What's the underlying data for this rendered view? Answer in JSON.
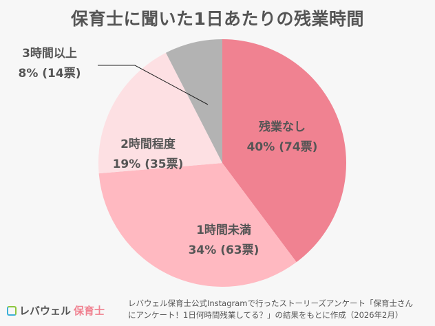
{
  "chart_data": {
    "type": "pie",
    "title": "保育士に聞いた1日あたりの残業時間",
    "start": "top",
    "direction": "clockwise",
    "slices": [
      {
        "label": "残業なし",
        "percent": 40,
        "votes": 74,
        "value_label": "40% (74票)",
        "color": "#f08291"
      },
      {
        "label": "1時間未満",
        "percent": 34,
        "votes": 63,
        "value_label": "34% (63票)",
        "color": "#ffb9c1"
      },
      {
        "label": "2時間程度",
        "percent": 19,
        "votes": 35,
        "value_label": "19% (35票)",
        "color": "#fde0e3"
      },
      {
        "label": "3時間以上",
        "percent": 8,
        "votes": 14,
        "value_label": "8% (14票)",
        "color": "#b3b3b3"
      }
    ]
  },
  "footer": {
    "logo_part1": "レバウェル",
    "logo_part2": "保育士",
    "source_line1": "レバウェル保育士公式Instagramで行ったストーリーズアンケート「保育士さん",
    "source_line2": "にアンケート！1日何時間残業してる？」の結果をもとに作成（2026年2月）"
  }
}
